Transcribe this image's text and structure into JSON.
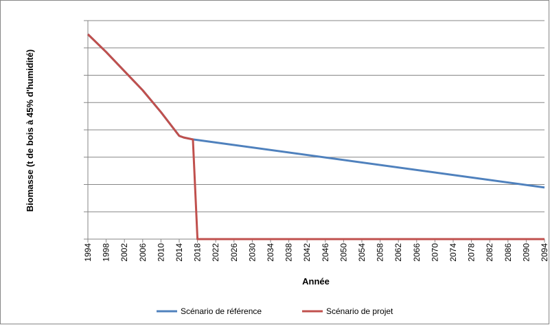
{
  "chart_data": {
    "type": "line",
    "y_label": "Biomasse (t de bois à 45% d'humidité)",
    "x_label": "Année",
    "x": [
      1994,
      1998,
      2002,
      2006,
      2010,
      2014,
      2015,
      2017,
      2018,
      2094
    ],
    "series": [
      {
        "name": "Scénario de référence",
        "color": "#4f81bd",
        "values": [
          7.5,
          6.85,
          6.15,
          5.45,
          4.65,
          3.78,
          3.72,
          3.65,
          3.63,
          1.89
        ]
      },
      {
        "name": "Scénario de projet",
        "color": "#c0504d",
        "values": [
          7.5,
          6.85,
          6.15,
          5.45,
          4.65,
          3.78,
          3.72,
          3.65,
          0,
          0
        ]
      }
    ],
    "xlim": [
      1994,
      2094
    ],
    "xticks": [
      1994,
      1998,
      2002,
      2006,
      2010,
      2014,
      2018,
      2022,
      2026,
      2030,
      2034,
      2038,
      2042,
      2046,
      2050,
      2054,
      2058,
      2062,
      2066,
      2070,
      2074,
      2078,
      2082,
      2086,
      2090,
      2094
    ],
    "ylim": [
      0,
      8
    ],
    "yticks": [
      0,
      1,
      2,
      3,
      4,
      5,
      6,
      7,
      8
    ],
    "grid": true,
    "legend": "bottom"
  }
}
